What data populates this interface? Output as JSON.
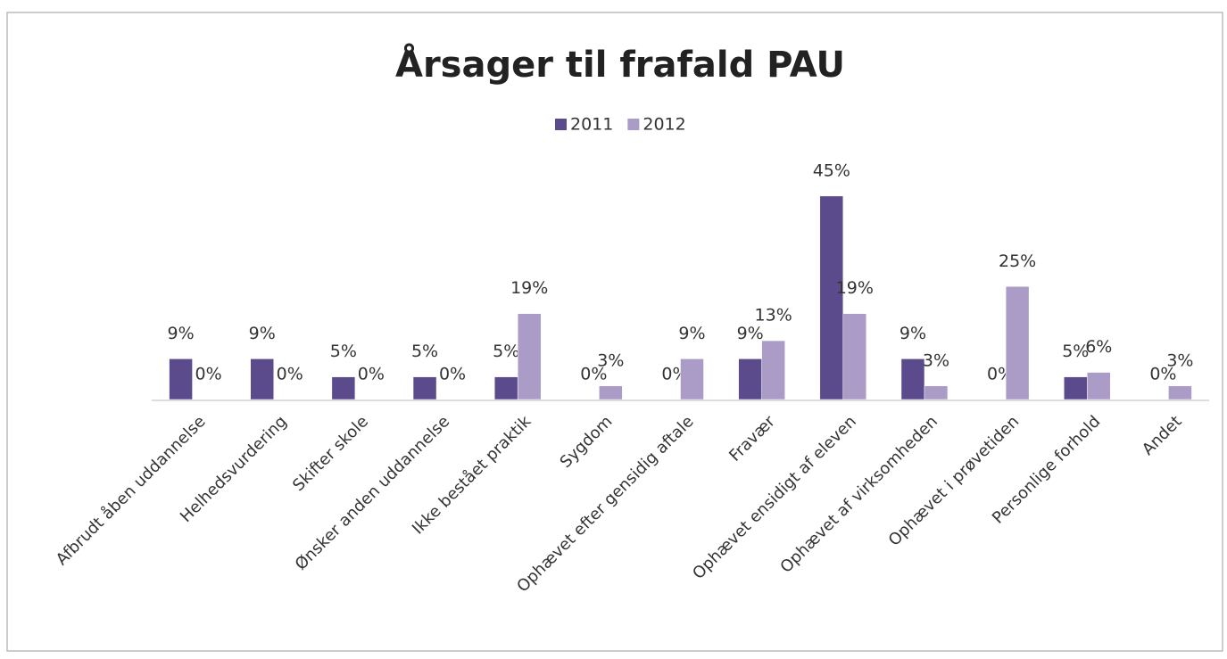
{
  "chart_data": {
    "type": "bar",
    "title": "Årsager til frafald PAU",
    "categories": [
      "Afbrudt åben uddannelse",
      "Helhedsvurdering",
      "Skifter skole",
      "Ønsker anden uddannelse",
      "Ikke bestået praktik",
      "Sygdom",
      "Ophævet efter gensidig aftale",
      "Fravær",
      "Ophævet ensidigt af eleven",
      "Ophævet  af virksomheden",
      "Ophævet i prøvetiden",
      "Personlige forhold",
      "Andet"
    ],
    "series": [
      {
        "name": "2011",
        "color": "#5b4a8c",
        "values": [
          9,
          9,
          5,
          5,
          5,
          0,
          0,
          9,
          45,
          9,
          0,
          5,
          0
        ],
        "value_labels": [
          "9%",
          "9%",
          "5%",
          "5%",
          "5%",
          "0%",
          "0%",
          "9%",
          "45%",
          "9%",
          "0%",
          "5%",
          "0%"
        ]
      },
      {
        "name": "2012",
        "color": "#aa9cc6",
        "values": [
          0,
          0,
          0,
          0,
          19,
          3,
          9,
          13,
          19,
          3,
          25,
          6,
          3
        ],
        "value_labels": [
          "0%",
          "0%",
          "0%",
          "0%",
          "19%",
          "3%",
          "9%",
          "13%",
          "19%",
          "3%",
          "25%",
          "6%",
          "3%"
        ]
      }
    ],
    "legend": "top"
  }
}
